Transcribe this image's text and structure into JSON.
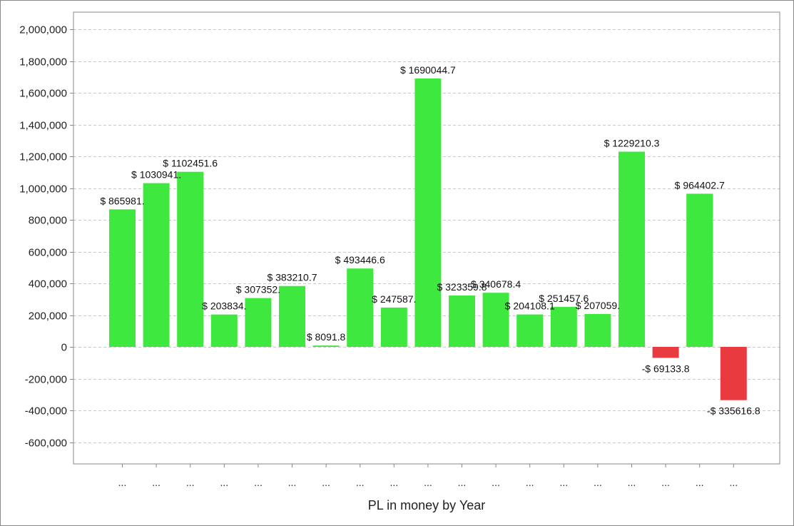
{
  "chart_data": {
    "type": "bar",
    "title": "",
    "xlabel": "PL in money by Year",
    "ylabel": "",
    "ylim": [
      -650000,
      2100000
    ],
    "yticks": [
      2000000,
      1800000,
      1600000,
      1400000,
      1200000,
      1000000,
      800000,
      600000,
      400000,
      200000,
      0,
      -200000,
      -400000,
      -600000
    ],
    "ytick_labels": [
      "2,000,000",
      "1,800,000",
      "1,600,000",
      "1,400,000",
      "1,200,000",
      "1,000,000",
      "800,000",
      "600,000",
      "400,000",
      "200,000",
      "0",
      "-200,000",
      "-400,000",
      "-600,000"
    ],
    "grid": true,
    "legend": "none",
    "categories": [
      "...",
      "...",
      "...",
      "...",
      "...",
      "...",
      "...",
      "...",
      "...",
      "...",
      "...",
      "...",
      "...",
      "...",
      "...",
      "...",
      "...",
      "...",
      "..."
    ],
    "values": [
      865981,
      1030941,
      1102451.6,
      203834,
      307352,
      383210.7,
      8091.8,
      493446.6,
      247587,
      1690044.7,
      323359.8,
      340678.4,
      204108.1,
      251457.6,
      207059,
      1229210.3,
      -69133.8,
      964402.7,
      -335616.8
    ],
    "data_labels": [
      "$ 865981.",
      "$ 1030941.",
      "$ 1102451.6",
      "$ 203834.",
      "$ 307352.",
      "$ 383210.7",
      "$ 8091.8",
      "$ 493446.6",
      "$ 247587.",
      "$ 1690044.7",
      "$ 323359.8",
      "$ 340678.4",
      "$ 204108.1",
      "$ 251457.6",
      "$ 207059.",
      "$ 1229210.3",
      "-$ 69133.8",
      "$ 964402.7",
      "-$ 335616.8"
    ],
    "colors": {
      "positive": "#3fe83f",
      "negative": "#e83a3f",
      "grid": "#c8c8c8",
      "axis": "#888888"
    }
  }
}
